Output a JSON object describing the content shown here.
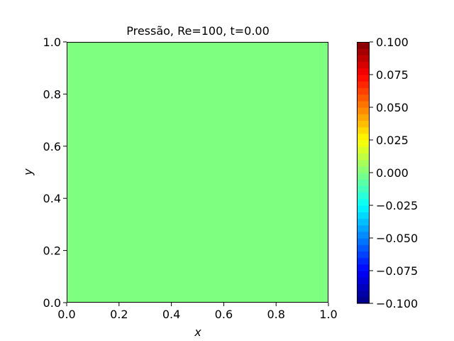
{
  "chart_data": {
    "type": "heatmap",
    "title": "Pressão, Re=100, t=0.00",
    "xlabel": "x",
    "ylabel": "y",
    "xlim": [
      0.0,
      1.0
    ],
    "ylim": [
      0.0,
      1.0
    ],
    "x_ticks": [
      0.0,
      0.2,
      0.4,
      0.6,
      0.8,
      1.0
    ],
    "y_ticks": [
      0.0,
      0.2,
      0.4,
      0.6,
      0.8,
      1.0
    ],
    "x_tick_labels": [
      "0.0",
      "0.2",
      "0.4",
      "0.6",
      "0.8",
      "1.0"
    ],
    "y_tick_labels": [
      "0.0",
      "0.2",
      "0.4",
      "0.6",
      "0.8",
      "1.0"
    ],
    "field_value": 0.0,
    "field_color": "#7fff7f",
    "grid": false,
    "colorbar": {
      "colormap": "jet",
      "vmin": -0.1,
      "vmax": 0.1,
      "levels": 40,
      "ticks": [
        -0.1,
        -0.075,
        -0.05,
        -0.025,
        0.0,
        0.025,
        0.05,
        0.075,
        0.1
      ],
      "tick_labels": [
        "−0.100",
        "−0.075",
        "−0.050",
        "−0.025",
        "0.000",
        "0.025",
        "0.050",
        "0.075",
        "0.100"
      ],
      "placement": "right"
    }
  }
}
